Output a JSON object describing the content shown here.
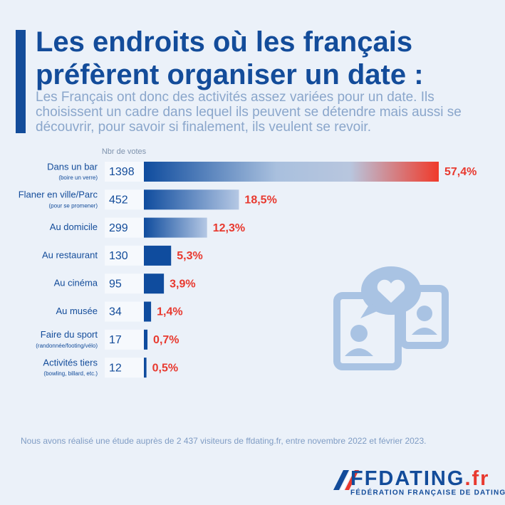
{
  "chart_data": {
    "type": "bar",
    "title": "Les endroits où les français préfèrent organiser un date :",
    "subtitle": "Les Français ont donc des activités assez variées pour un date. Ils choisissent un cadre dans lequel ils peuvent se détendre mais aussi se découvrir, pour savoir si finalement, ils veulent se revoir.",
    "value_header": "Nbr de votes",
    "categories": [
      "Dans un bar",
      "Flaner en ville/Parc",
      "Au domicile",
      "Au restaurant",
      "Au cinéma",
      "Au musée",
      "Faire du sport",
      "Activités tiers"
    ],
    "sublabels": [
      "(boire un verre)",
      "(pour se promener)",
      null,
      null,
      null,
      null,
      "(randonnée/footing/vélo)",
      "(bowling, billard, etc.)"
    ],
    "votes": [
      1398,
      452,
      299,
      130,
      95,
      34,
      17,
      12
    ],
    "values": [
      57.4,
      18.5,
      12.3,
      5.3,
      3.9,
      1.4,
      0.7,
      0.5
    ],
    "value_labels": [
      "57,4%",
      "18,5%",
      "12,3%",
      "5,3%",
      "3,9%",
      "1,4%",
      "0,7%",
      "0,5%"
    ],
    "color": "#0f4c9e",
    "label_color": "#e8392f"
  },
  "footnote": "Nous avons réalisé une étude auprès de 2 437 visiteurs de ffdating.fr, entre novembre 2022 et février 2023.",
  "logo": {
    "name": "FFDATING",
    "suffix": ".fr",
    "tagline": "FÉDÉRATION FRANÇAISE DE DATING"
  }
}
